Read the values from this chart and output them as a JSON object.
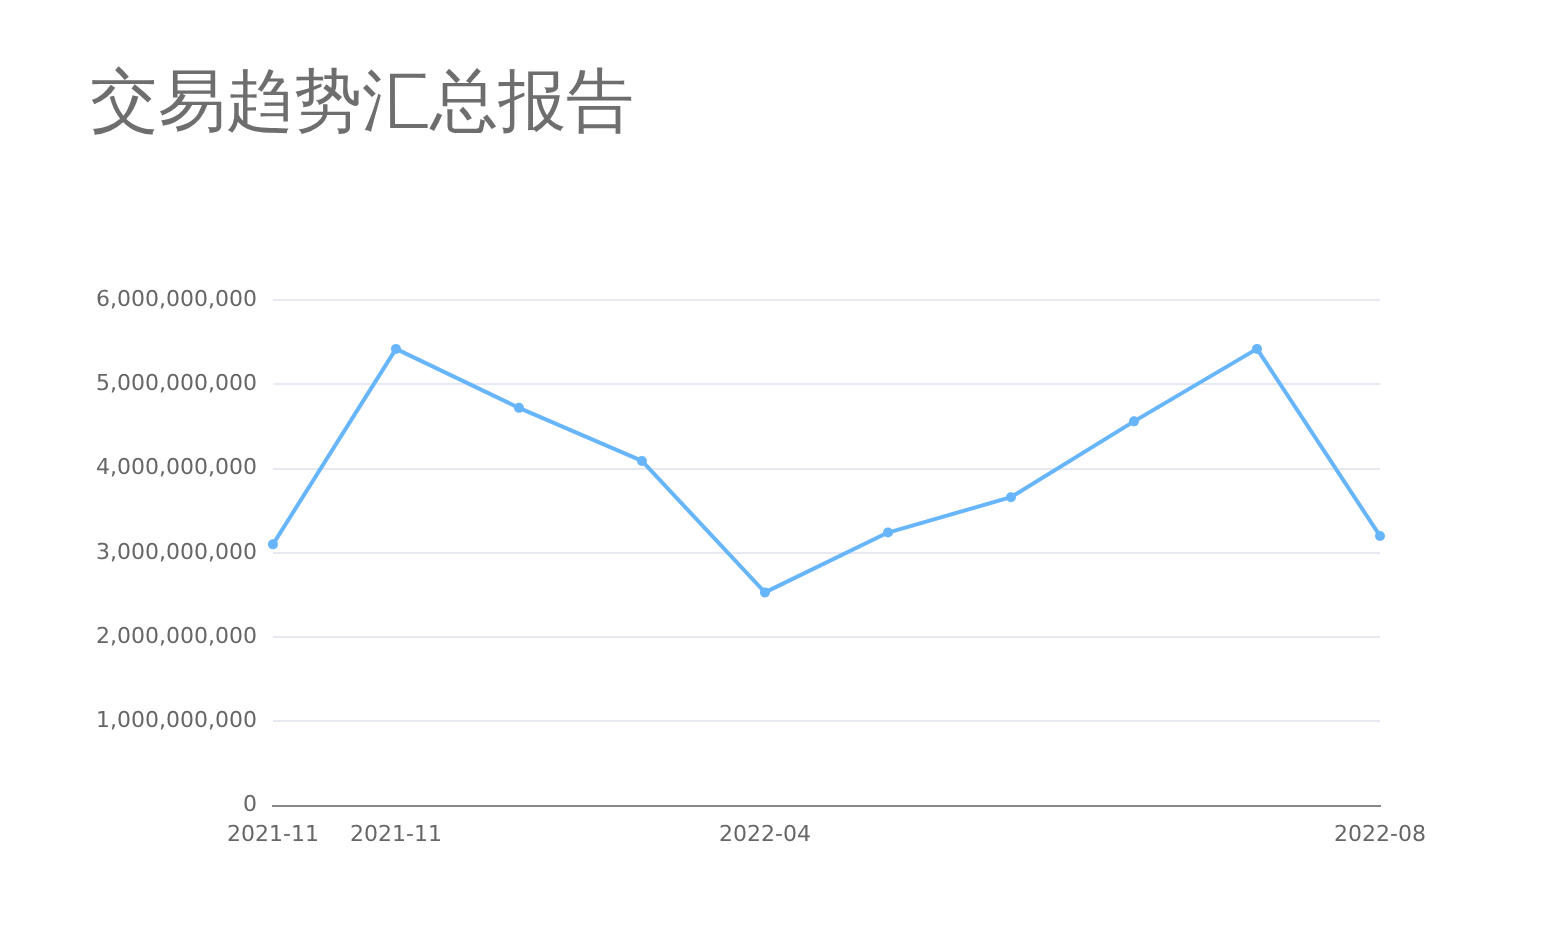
{
  "chart_data": {
    "type": "line",
    "title": "交易趋势汇总报告",
    "categories": [
      "2021-11",
      "2021-11",
      null,
      null,
      "2022-04",
      null,
      null,
      null,
      null,
      "2022-08"
    ],
    "series": [
      {
        "color": "#67b5fb",
        "values": [
          3100000000,
          5420000000,
          4720000000,
          4090000000,
          2530000000,
          3240000000,
          3660000000,
          4560000000,
          5420000000,
          3200000000
        ]
      }
    ],
    "ylim": [
      0,
      6000000000
    ],
    "yticks": [
      0,
      {
        "value": 1000000000,
        "label": "1,000,000,000"
      },
      {
        "value": 2000000000,
        "label": "2,000,000,000"
      },
      {
        "value": 3000000000,
        "label": "3,000,000,000"
      },
      {
        "value": 4000000000,
        "label": "4,000,000,000"
      },
      {
        "value": 5000000000,
        "label": "5,000,000,000"
      },
      {
        "value": 6000000000,
        "label": "6,000,000,000"
      }
    ],
    "grid": "y",
    "legend": false,
    "marker": "circle",
    "line_style": "solid"
  }
}
